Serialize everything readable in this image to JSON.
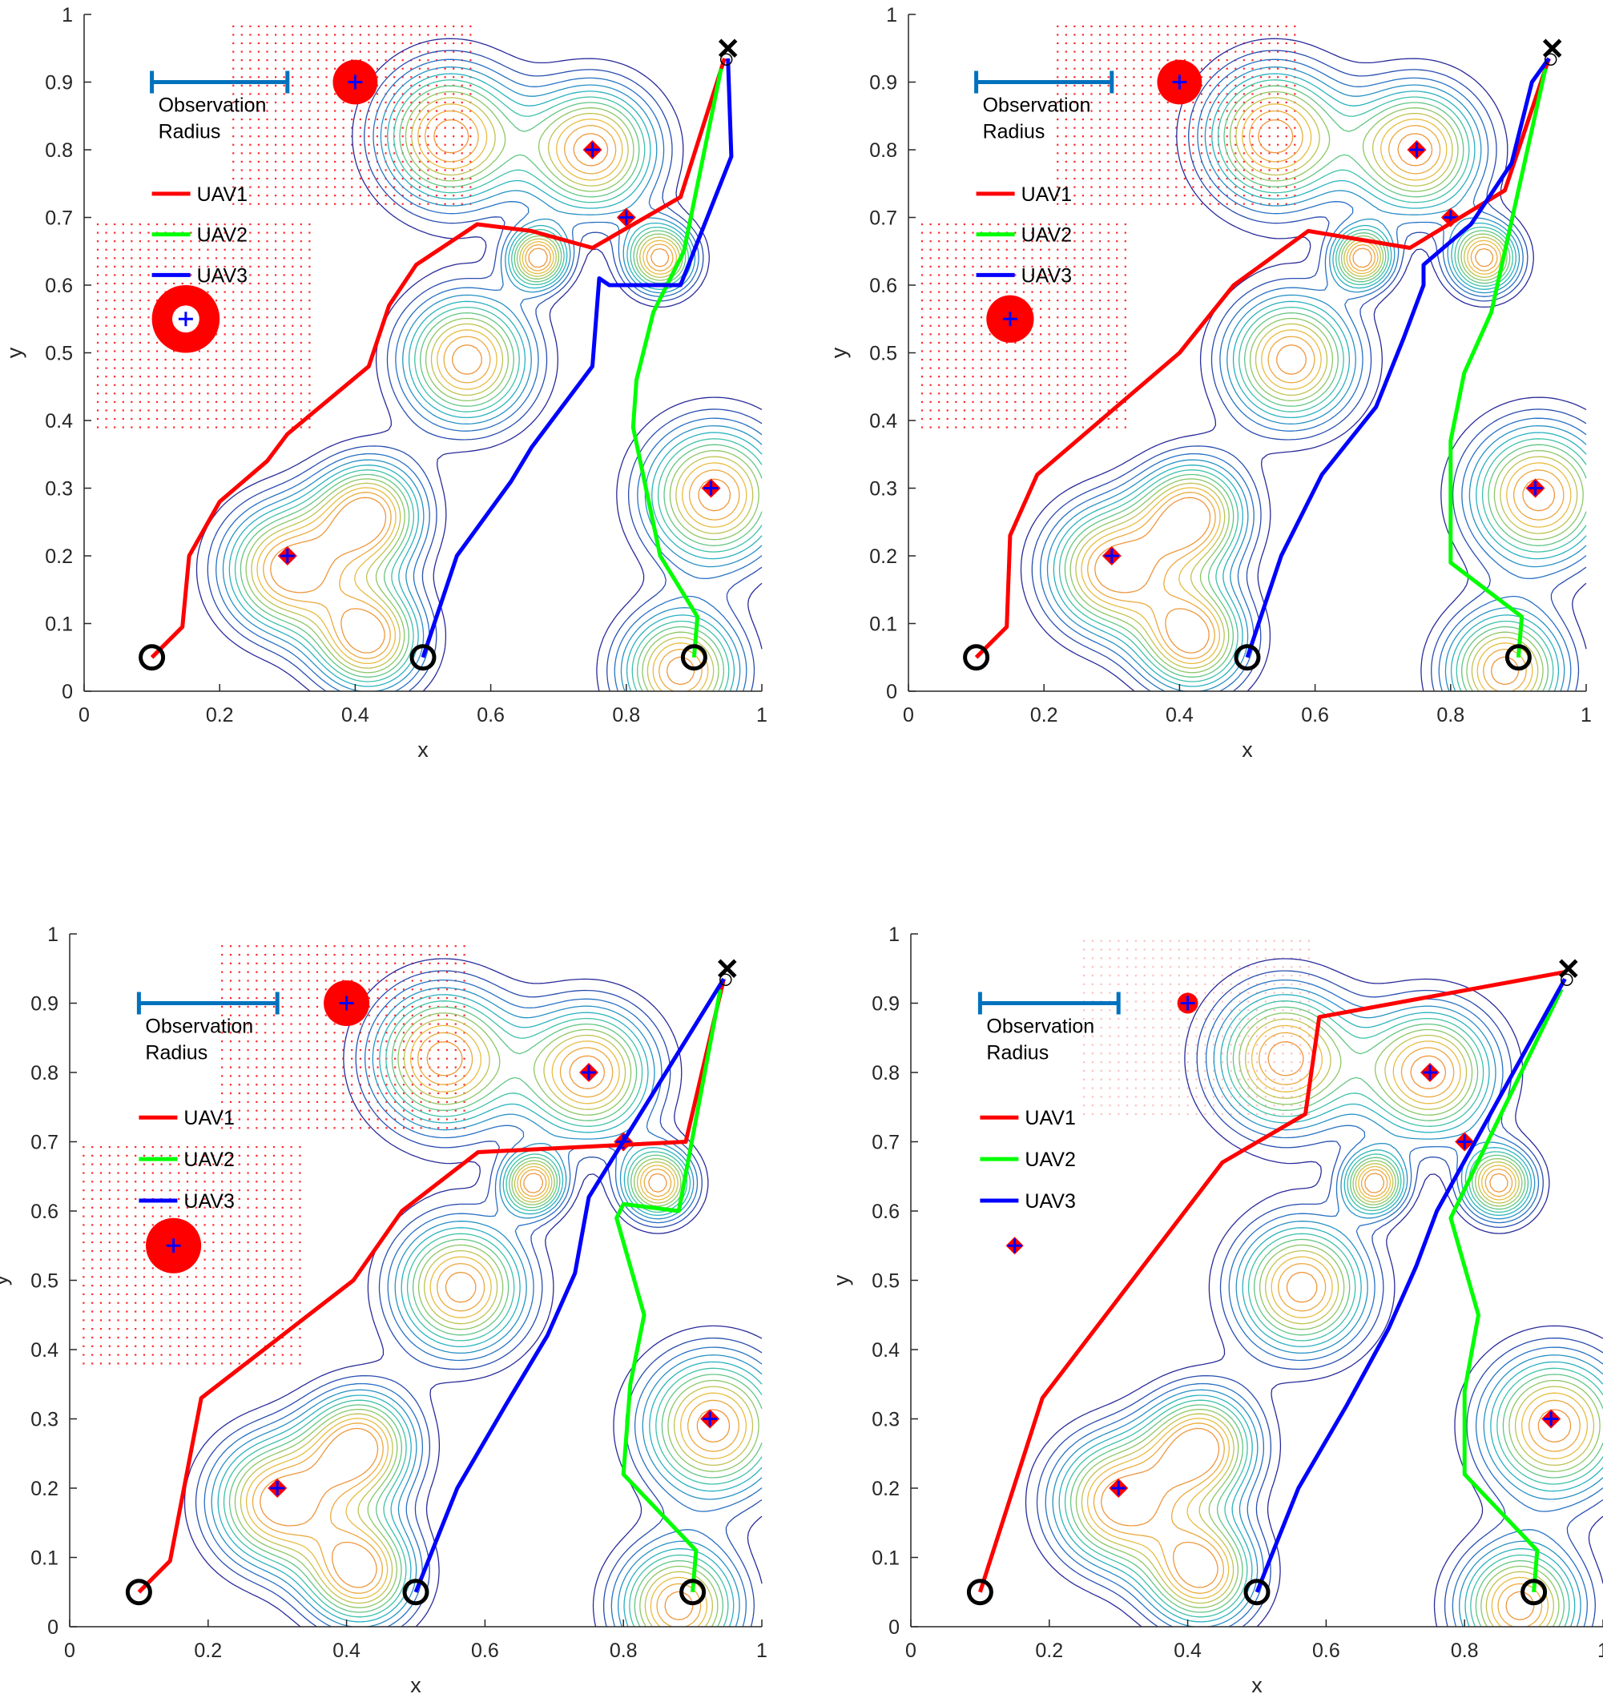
{
  "chart_data": {
    "type": "line",
    "xlim": [
      0,
      1
    ],
    "ylim": [
      0,
      1
    ],
    "xticks": [
      "0",
      "0.2",
      "0.4",
      "0.6",
      "0.8",
      "1"
    ],
    "yticks": [
      "0",
      "0.1",
      "0.2",
      "0.3",
      "0.4",
      "0.5",
      "0.6",
      "0.7",
      "0.8",
      "0.9",
      "1"
    ],
    "xlabel": "x",
    "ylabel": "y",
    "observation_radius_label": "Observation\nRadius",
    "observation_radius_bar": [
      0.1,
      0.3
    ],
    "legend": [
      "UAV1",
      "UAV2",
      "UAV3"
    ],
    "colors": {
      "uav1": "#ff0000",
      "uav2": "#00ff00",
      "uav3": "#0000ff",
      "radius_bar": "#0072bd",
      "threat": "#ff0000",
      "marker_cross": "#0000ff",
      "contour_low": "#2a2a9a",
      "contour_high": "#e8c040"
    },
    "start_points": [
      [
        0.1,
        0.05
      ],
      [
        0.5,
        0.05
      ],
      [
        0.9,
        0.05
      ]
    ],
    "goal": [
      0.95,
      0.95
    ],
    "targets": [
      [
        0.75,
        0.8
      ],
      [
        0.8,
        0.7
      ],
      [
        0.925,
        0.3
      ],
      [
        0.3,
        0.2
      ]
    ],
    "peaks": [
      {
        "x": 0.54,
        "y": 0.82,
        "s": 0.07
      },
      {
        "x": 0.75,
        "y": 0.8,
        "s": 0.065
      },
      {
        "x": 0.67,
        "y": 0.64,
        "s": 0.03
      },
      {
        "x": 0.85,
        "y": 0.64,
        "s": 0.035
      },
      {
        "x": 0.565,
        "y": 0.49,
        "s": 0.065
      },
      {
        "x": 0.3,
        "y": 0.18,
        "s": 0.065
      },
      {
        "x": 0.42,
        "y": 0.26,
        "s": 0.055
      },
      {
        "x": 0.42,
        "y": 0.08,
        "s": 0.055
      },
      {
        "x": 0.93,
        "y": 0.29,
        "s": 0.07
      },
      {
        "x": 0.88,
        "y": 0.03,
        "s": 0.06
      }
    ],
    "panels": [
      {
        "threats": [
          {
            "x": 0.4,
            "y": 0.9,
            "r": 0.033,
            "ring": false
          },
          {
            "x": 0.15,
            "y": 0.55,
            "r": 0.05,
            "ring": true
          }
        ],
        "threat_dot_fields": [
          {
            "xmin": 0.22,
            "xmax": 0.58,
            "ymin": 0.72,
            "ymax": 0.99
          },
          {
            "xmin": 0.02,
            "xmax": 0.34,
            "ymin": 0.39,
            "ymax": 0.7
          }
        ],
        "series": [
          {
            "name": "UAV1",
            "points": [
              [
                0.1,
                0.05
              ],
              [
                0.145,
                0.095
              ],
              [
                0.155,
                0.2
              ],
              [
                0.2,
                0.28
              ],
              [
                0.27,
                0.34
              ],
              [
                0.3,
                0.38
              ],
              [
                0.42,
                0.48
              ],
              [
                0.45,
                0.57
              ],
              [
                0.49,
                0.63
              ],
              [
                0.58,
                0.69
              ],
              [
                0.66,
                0.68
              ],
              [
                0.75,
                0.655
              ],
              [
                0.88,
                0.73
              ],
              [
                0.945,
                0.935
              ]
            ]
          },
          {
            "name": "UAV2",
            "points": [
              [
                0.9,
                0.05
              ],
              [
                0.905,
                0.11
              ],
              [
                0.85,
                0.2
              ],
              [
                0.81,
                0.39
              ],
              [
                0.815,
                0.46
              ],
              [
                0.84,
                0.56
              ],
              [
                0.885,
                0.65
              ],
              [
                0.94,
                0.92
              ]
            ]
          },
          {
            "name": "UAV3",
            "points": [
              [
                0.5,
                0.05
              ],
              [
                0.55,
                0.2
              ],
              [
                0.63,
                0.31
              ],
              [
                0.66,
                0.36
              ],
              [
                0.72,
                0.44
              ],
              [
                0.75,
                0.48
              ],
              [
                0.76,
                0.61
              ],
              [
                0.775,
                0.6
              ],
              [
                0.88,
                0.6
              ],
              [
                0.955,
                0.79
              ],
              [
                0.95,
                0.935
              ]
            ]
          }
        ]
      },
      {
        "threats": [
          {
            "x": 0.4,
            "y": 0.9,
            "r": 0.033,
            "ring": false
          },
          {
            "x": 0.15,
            "y": 0.55,
            "r": 0.035,
            "ring": false
          }
        ],
        "threat_dot_fields": [
          {
            "xmin": 0.22,
            "xmax": 0.58,
            "ymin": 0.72,
            "ymax": 0.99
          },
          {
            "xmin": 0.02,
            "xmax": 0.32,
            "ymin": 0.39,
            "ymax": 0.7
          }
        ],
        "series": [
          {
            "name": "UAV1",
            "points": [
              [
                0.1,
                0.05
              ],
              [
                0.145,
                0.095
              ],
              [
                0.15,
                0.23
              ],
              [
                0.19,
                0.32
              ],
              [
                0.4,
                0.5
              ],
              [
                0.48,
                0.6
              ],
              [
                0.59,
                0.68
              ],
              [
                0.74,
                0.655
              ],
              [
                0.88,
                0.74
              ],
              [
                0.945,
                0.935
              ]
            ]
          },
          {
            "name": "UAV2",
            "points": [
              [
                0.9,
                0.05
              ],
              [
                0.905,
                0.11
              ],
              [
                0.8,
                0.19
              ],
              [
                0.8,
                0.37
              ],
              [
                0.82,
                0.47
              ],
              [
                0.86,
                0.56
              ],
              [
                0.94,
                0.92
              ]
            ]
          },
          {
            "name": "UAV3",
            "points": [
              [
                0.5,
                0.05
              ],
              [
                0.55,
                0.2
              ],
              [
                0.61,
                0.32
              ],
              [
                0.69,
                0.42
              ],
              [
                0.73,
                0.52
              ],
              [
                0.76,
                0.6
              ],
              [
                0.76,
                0.63
              ],
              [
                0.83,
                0.69
              ],
              [
                0.89,
                0.78
              ],
              [
                0.92,
                0.9
              ],
              [
                0.945,
                0.935
              ]
            ]
          }
        ]
      },
      {
        "threats": [
          {
            "x": 0.4,
            "y": 0.9,
            "r": 0.033,
            "ring": false
          },
          {
            "x": 0.15,
            "y": 0.55,
            "r": 0.04,
            "ring": false
          }
        ],
        "threat_dot_fields": [
          {
            "xmin": 0.22,
            "xmax": 0.58,
            "ymin": 0.72,
            "ymax": 0.99
          },
          {
            "xmin": 0.02,
            "xmax": 0.34,
            "ymin": 0.38,
            "ymax": 0.7
          }
        ],
        "series": [
          {
            "name": "UAV1",
            "points": [
              [
                0.1,
                0.05
              ],
              [
                0.145,
                0.095
              ],
              [
                0.19,
                0.33
              ],
              [
                0.41,
                0.5
              ],
              [
                0.48,
                0.6
              ],
              [
                0.59,
                0.685
              ],
              [
                0.89,
                0.7
              ],
              [
                0.945,
                0.935
              ]
            ]
          },
          {
            "name": "UAV2",
            "points": [
              [
                0.9,
                0.05
              ],
              [
                0.905,
                0.11
              ],
              [
                0.8,
                0.22
              ],
              [
                0.81,
                0.35
              ],
              [
                0.83,
                0.45
              ],
              [
                0.79,
                0.59
              ],
              [
                0.8,
                0.61
              ],
              [
                0.88,
                0.6
              ],
              [
                0.94,
                0.92
              ]
            ]
          },
          {
            "name": "UAV3",
            "points": [
              [
                0.5,
                0.05
              ],
              [
                0.56,
                0.2
              ],
              [
                0.63,
                0.32
              ],
              [
                0.69,
                0.42
              ],
              [
                0.73,
                0.51
              ],
              [
                0.75,
                0.62
              ],
              [
                0.945,
                0.935
              ]
            ]
          }
        ]
      },
      {
        "threats": [
          {
            "x": 0.4,
            "y": 0.9,
            "r": 0.015,
            "ring": false
          },
          {
            "x": 0.15,
            "y": 0.55,
            "r": 0.0,
            "ring": false
          }
        ],
        "threat_dot_fields": [
          {
            "xmin": 0.25,
            "xmax": 0.58,
            "ymin": 0.74,
            "ymax": 0.99
          }
        ],
        "series": [
          {
            "name": "UAV1",
            "points": [
              [
                0.1,
                0.05
              ],
              [
                0.19,
                0.33
              ],
              [
                0.45,
                0.67
              ],
              [
                0.57,
                0.74
              ],
              [
                0.59,
                0.88
              ],
              [
                0.945,
                0.945
              ]
            ]
          },
          {
            "name": "UAV2",
            "points": [
              [
                0.9,
                0.05
              ],
              [
                0.905,
                0.11
              ],
              [
                0.8,
                0.22
              ],
              [
                0.8,
                0.34
              ],
              [
                0.82,
                0.45
              ],
              [
                0.78,
                0.59
              ],
              [
                0.94,
                0.92
              ]
            ]
          },
          {
            "name": "UAV3",
            "points": [
              [
                0.5,
                0.05
              ],
              [
                0.56,
                0.2
              ],
              [
                0.63,
                0.32
              ],
              [
                0.69,
                0.43
              ],
              [
                0.73,
                0.52
              ],
              [
                0.76,
                0.6
              ],
              [
                0.945,
                0.935
              ]
            ]
          }
        ]
      }
    ]
  }
}
